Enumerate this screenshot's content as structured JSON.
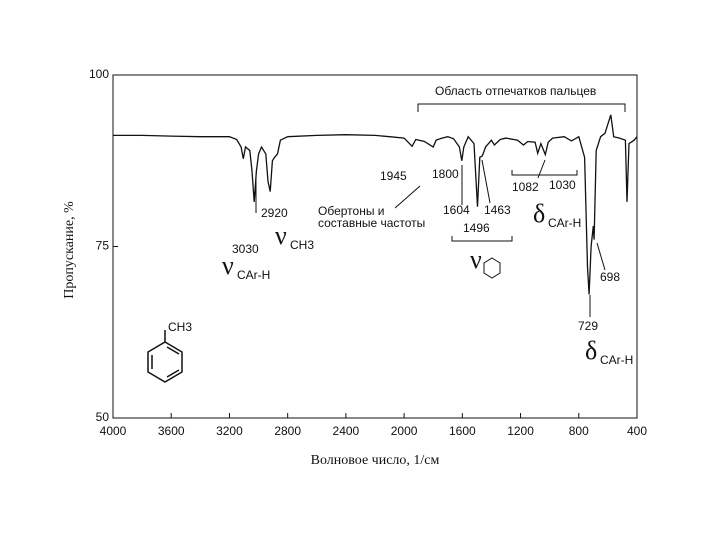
{
  "chart_data": {
    "type": "line",
    "xlabel": "Волновое число, 1/см",
    "ylabel": "Пропускание, %",
    "xlim": [
      4000,
      400
    ],
    "ylim": [
      50,
      100
    ],
    "xticks": [
      4000,
      3600,
      3200,
      2800,
      2400,
      2000,
      1600,
      1200,
      800,
      400
    ],
    "yticks": [
      100,
      75,
      50
    ],
    "color": "#111111",
    "x": [
      4000,
      3800,
      3600,
      3400,
      3200,
      3150,
      3120,
      3105,
      3090,
      3060,
      3045,
      3030,
      3015,
      3000,
      2980,
      2950,
      2935,
      2920,
      2905,
      2890,
      2870,
      2850,
      2800,
      2600,
      2400,
      2200,
      2100,
      2000,
      1945,
      1920,
      1860,
      1800,
      1780,
      1740,
      1700,
      1660,
      1620,
      1604,
      1590,
      1560,
      1520,
      1496,
      1480,
      1463,
      1440,
      1400,
      1380,
      1340,
      1300,
      1220,
      1180,
      1150,
      1100,
      1082,
      1060,
      1030,
      1010,
      980,
      900,
      850,
      800,
      760,
      740,
      729,
      715,
      700,
      695,
      680,
      650,
      620,
      580,
      560,
      520,
      480,
      469,
      455,
      420,
      400
    ],
    "values": [
      91.2,
      91.2,
      91.1,
      91.0,
      91.0,
      90.6,
      89.5,
      87.8,
      89.5,
      89.0,
      86.0,
      81.5,
      86.0,
      88.5,
      89.5,
      88.5,
      84.5,
      83.0,
      87.5,
      88.0,
      88.5,
      90.5,
      91.0,
      91.2,
      91.3,
      91.2,
      91.0,
      90.8,
      89.6,
      90.6,
      90.3,
      89.5,
      90.5,
      90.8,
      91.0,
      90.7,
      89.5,
      87.5,
      89.5,
      91.0,
      90.0,
      80.8,
      88.0,
      88.2,
      89.5,
      90.5,
      89.8,
      90.6,
      90.8,
      90.5,
      89.8,
      90.3,
      90.2,
      88.6,
      90.0,
      88.4,
      90.2,
      90.8,
      91.0,
      90.4,
      91.0,
      88.0,
      72.0,
      68.0,
      75.0,
      78.0,
      76.0,
      89.0,
      91.0,
      91.5,
      94.2,
      91.0,
      90.8,
      90.5,
      81.5,
      90.0,
      90.5,
      91.0
    ],
    "annotations": [
      "Область отпечатков пальцев",
      "1945",
      "1800",
      "Обертоны и",
      "составные частоты",
      "1604",
      "1463",
      "1496",
      "1082",
      "1030",
      "2920",
      "3030",
      "729",
      "698"
    ],
    "band_labels": [
      {
        "symbol": "ν",
        "subscript": "CH3"
      },
      {
        "symbol": "ν",
        "subscript": "CAr-H"
      },
      {
        "symbol": "δ",
        "subscript": "CAr-H"
      },
      {
        "symbol": "δ",
        "subscript": "CAr-H"
      },
      {
        "symbol": "ν"
      }
    ],
    "structure_label": "CH3"
  }
}
